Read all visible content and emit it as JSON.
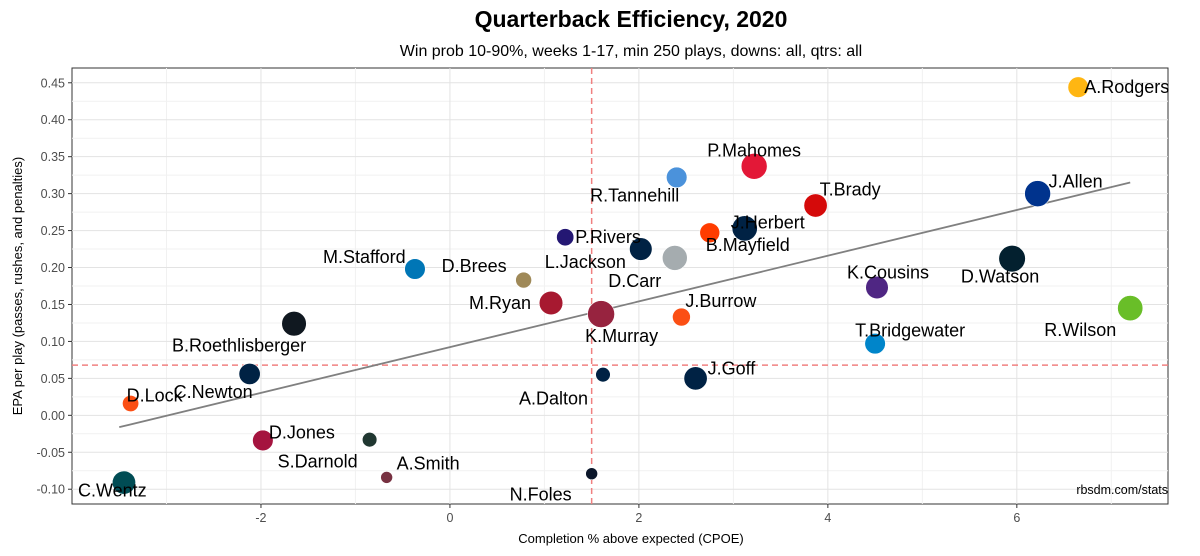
{
  "chart_data": {
    "type": "scatter",
    "title": "Quarterback Efficiency, 2020",
    "subtitle": "Win prob 10-90%, weeks 1-17, min 250 plays, downs: all, qtrs: all",
    "xlabel": "Completion % above expected (CPOE)",
    "ylabel": "EPA per play (passes, rushes, and penalties)",
    "caption": "rbsdm.com/stats",
    "xlim": [
      -4.0,
      7.6
    ],
    "ylim": [
      -0.12,
      0.47
    ],
    "x_ticks": [
      -2,
      0,
      2,
      4,
      6
    ],
    "x_tick_labels": [
      "-2",
      "0",
      "2",
      "4",
      "6"
    ],
    "y_ticks": [
      -0.1,
      -0.05,
      0.0,
      0.05,
      0.1,
      0.15,
      0.2,
      0.25,
      0.3,
      0.35,
      0.4,
      0.45
    ],
    "y_tick_labels": [
      "-0.10",
      "-0.05",
      "0.00",
      "0.05",
      "0.10",
      "0.15",
      "0.20",
      "0.25",
      "0.30",
      "0.35",
      "0.40",
      "0.45"
    ],
    "grid": true,
    "mean_lines": {
      "x": 1.5,
      "y": 0.068,
      "color": "#f08080"
    },
    "trend_line": {
      "x": [
        -3.5,
        7.2
      ],
      "y": [
        -0.016,
        0.315
      ],
      "color": "#808080"
    },
    "points": [
      {
        "name": "A.Rodgers",
        "x": 6.65,
        "y": 0.444,
        "plays": 560,
        "color": "#FFB612"
      },
      {
        "name": "P.Mahomes",
        "x": 3.22,
        "y": 0.337,
        "plays": 720,
        "color": "#E31837"
      },
      {
        "name": "R.Tannehill",
        "x": 2.4,
        "y": 0.322,
        "plays": 560,
        "color": "#4B92DB"
      },
      {
        "name": "J.Allen",
        "x": 6.22,
        "y": 0.3,
        "plays": 720,
        "color": "#00338D"
      },
      {
        "name": "T.Brady",
        "x": 3.87,
        "y": 0.284,
        "plays": 640,
        "color": "#D50A0A"
      },
      {
        "name": "J.Herbert",
        "x": 3.12,
        "y": 0.253,
        "plays": 700,
        "color": "#002244"
      },
      {
        "name": "B.Mayfield",
        "x": 2.75,
        "y": 0.247,
        "plays": 540,
        "color": "#FF3C00"
      },
      {
        "name": "D.Carr",
        "x": 2.02,
        "y": 0.225,
        "plays": 620,
        "color": "#002244"
      },
      {
        "name": "P.Rivers",
        "x": 1.22,
        "y": 0.241,
        "plays": 460,
        "color": "#241773"
      },
      {
        "name": "L.Jackson",
        "x": 2.38,
        "y": 0.213,
        "plays": 690,
        "color": "#A5ACAF"
      },
      {
        "name": "D.Watson",
        "x": 5.95,
        "y": 0.212,
        "plays": 740,
        "color": "#03202F"
      },
      {
        "name": "M.Stafford",
        "x": -0.37,
        "y": 0.198,
        "plays": 560,
        "color": "#0076B6"
      },
      {
        "name": "D.Brees",
        "x": 0.78,
        "y": 0.183,
        "plays": 420,
        "color": "#9F8958"
      },
      {
        "name": "K.Cousins",
        "x": 4.52,
        "y": 0.173,
        "plays": 620,
        "color": "#4F2683"
      },
      {
        "name": "M.Ryan",
        "x": 1.07,
        "y": 0.152,
        "plays": 650,
        "color": "#A71930"
      },
      {
        "name": "R.Wilson",
        "x": 7.2,
        "y": 0.145,
        "plays": 700,
        "color": "#69BE28"
      },
      {
        "name": "K.Murray",
        "x": 1.6,
        "y": 0.137,
        "plays": 750,
        "color": "#97233F"
      },
      {
        "name": "J.Burrow",
        "x": 2.45,
        "y": 0.133,
        "plays": 480,
        "color": "#FB4F14"
      },
      {
        "name": "B.Roethlisberger",
        "x": -1.65,
        "y": 0.124,
        "plays": 680,
        "color": "#101820"
      },
      {
        "name": "T.Bridgewater",
        "x": 4.5,
        "y": 0.097,
        "plays": 560,
        "color": "#0085CA"
      },
      {
        "name": "C.Newton",
        "x": -2.12,
        "y": 0.056,
        "plays": 580,
        "color": "#002244"
      },
      {
        "name": "A.Dalton",
        "x": 1.62,
        "y": 0.055,
        "plays": 380,
        "color": "#002244"
      },
      {
        "name": "J.Goff",
        "x": 2.6,
        "y": 0.05,
        "plays": 640,
        "color": "#002244"
      },
      {
        "name": "D.Lock",
        "x": -3.38,
        "y": 0.016,
        "plays": 430,
        "color": "#FB4F14"
      },
      {
        "name": "D.Jones",
        "x": -1.98,
        "y": -0.034,
        "plays": 560,
        "color": "#A5143F"
      },
      {
        "name": "S.Darnold",
        "x": -0.85,
        "y": -0.033,
        "plays": 380,
        "color": "#203731"
      },
      {
        "name": "A.Smith",
        "x": -0.67,
        "y": -0.084,
        "plays": 300,
        "color": "#773141"
      },
      {
        "name": "N.Foles",
        "x": 1.5,
        "y": -0.079,
        "plays": 300,
        "color": "#0B162A"
      },
      {
        "name": "C.Wentz",
        "x": -3.45,
        "y": -0.091,
        "plays": 640,
        "color": "#004C54"
      }
    ]
  }
}
